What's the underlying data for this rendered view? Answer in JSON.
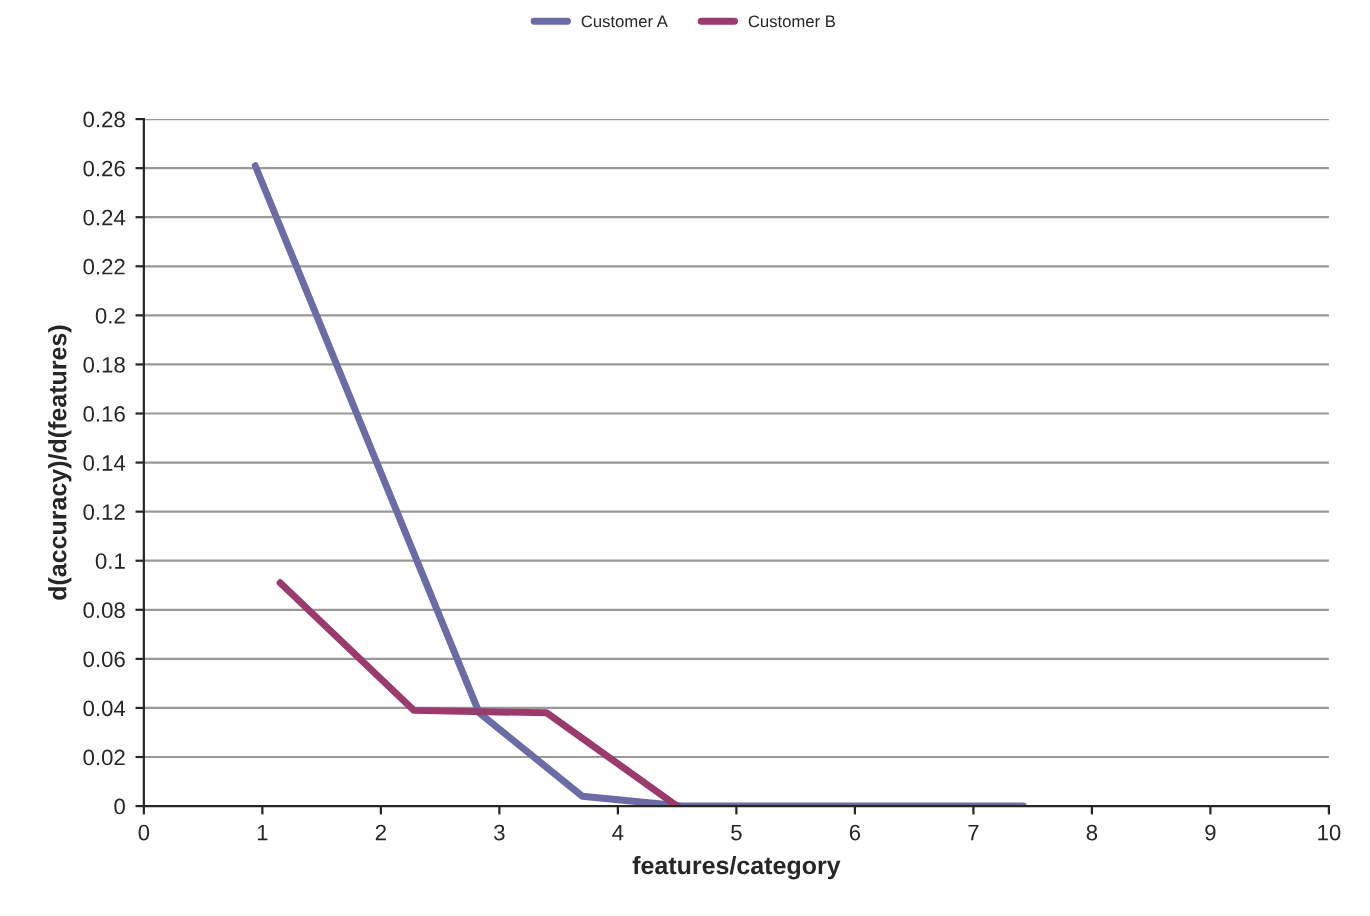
{
  "chart_data": {
    "type": "line",
    "xlabel": "features/category",
    "ylabel": "d(accuracy)/d(features)",
    "series": [
      {
        "name": "Customer A",
        "color": "#6b6ca6",
        "x": [
          0.94,
          2.83,
          3.7,
          4.54,
          7.42
        ],
        "values": [
          0.261,
          0.038,
          0.004,
          0,
          0
        ]
      },
      {
        "name": "Customer B",
        "color": "#9b3a6c",
        "x": [
          1.15,
          2.28,
          3.4,
          4.5
        ],
        "values": [
          0.091,
          0.039,
          0.038,
          0
        ]
      }
    ],
    "xlim": [
      0,
      10
    ],
    "xticks": [
      0,
      1,
      2,
      3,
      4,
      5,
      6,
      7,
      8,
      9,
      10
    ],
    "ylim": [
      0,
      0.28
    ],
    "yticks": [
      0,
      0.02,
      0.04,
      0.06,
      0.08,
      0.1,
      0.12,
      0.14,
      0.16,
      0.18,
      0.2,
      0.22,
      0.24,
      0.26,
      0.28
    ],
    "grid": "y",
    "legend": "top",
    "marker": "none",
    "line_style": "solid"
  }
}
